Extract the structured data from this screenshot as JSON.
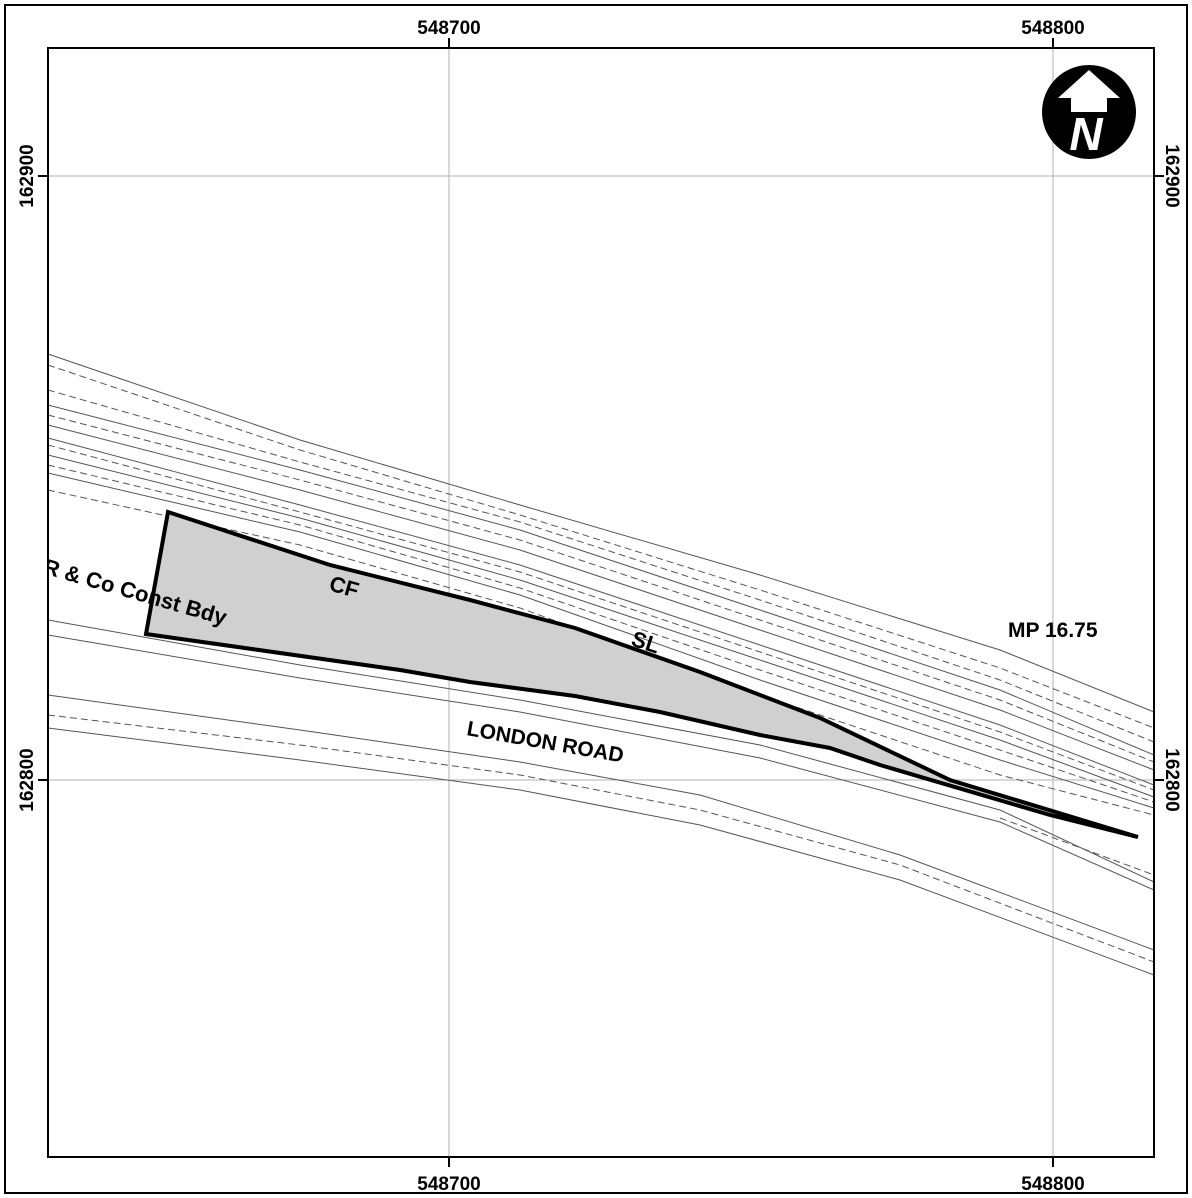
{
  "map": {
    "easting_labels": [
      "548700",
      "548800"
    ],
    "northing_labels": [
      "162900",
      "162800"
    ],
    "labels": {
      "boundary": "R & Co Const Bdy",
      "cf": "CF",
      "sl": "SL",
      "road": "LONDON ROAD",
      "milepost": "MP 16.75"
    },
    "north_arrow": {
      "icon": "north-arrow-icon",
      "letter": "N"
    },
    "colors": {
      "parcel_fill": "#d0d0d0",
      "outline": "#000000",
      "grid": "#b0b0b0",
      "background": "#ffffff"
    }
  }
}
